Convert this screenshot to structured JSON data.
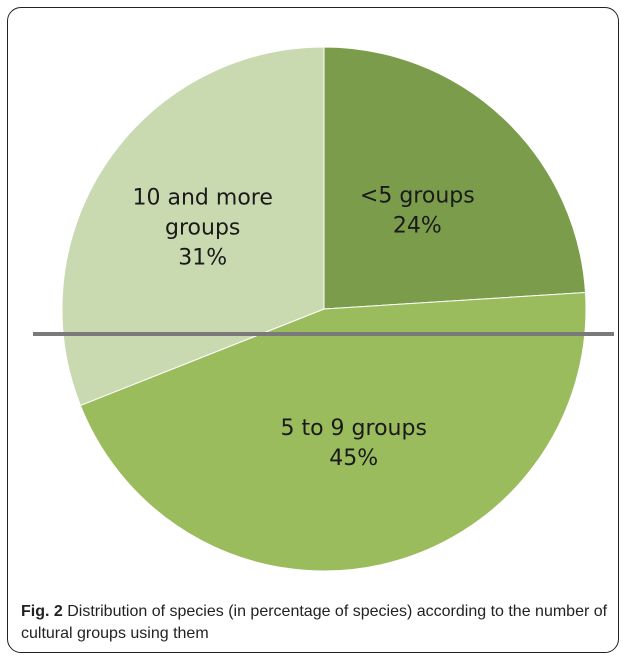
{
  "chart_data": {
    "type": "pie",
    "slices": [
      {
        "label_lines": [
          "<5 groups",
          "24%"
        ],
        "value": 24,
        "color": "#7b9c4a"
      },
      {
        "label_lines": [
          "5 to 9 groups",
          "45%"
        ],
        "value": 45,
        "color": "#9abc5c"
      },
      {
        "label_lines": [
          "10 and more",
          "groups",
          "31%"
        ],
        "value": 31,
        "color": "#c9d9b0"
      }
    ],
    "start_angle_deg": 0,
    "direction": "clockwise",
    "legend": "none"
  },
  "caption": {
    "fig_label": "Fig. 2",
    "text": "Distribution of species (in percentage of species) according to the number of cultural groups using them"
  }
}
